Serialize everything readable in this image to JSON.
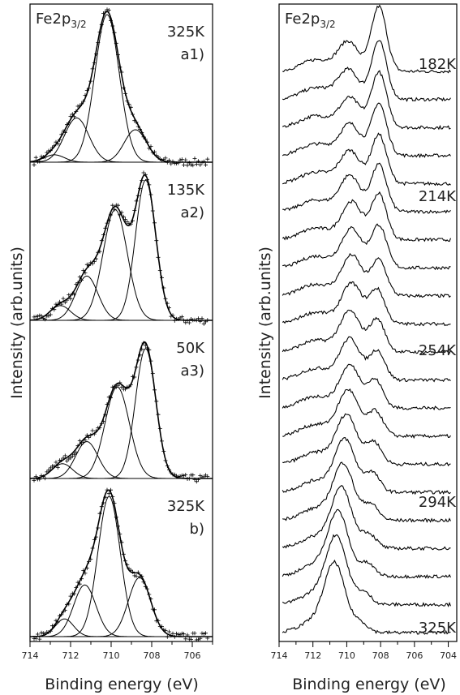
{
  "chart_data": [
    {
      "type": "line",
      "title": "",
      "xlabel": "Binding energy (eV)",
      "ylabel": "Intensity (arb.units)",
      "xlim": [
        714,
        705
      ],
      "x_reversed": true,
      "xticks": [
        "714",
        "712",
        "710",
        "708",
        "706"
      ],
      "element_label": "Fe2p",
      "element_sub": "3/2",
      "panels": [
        {
          "temp": "325K",
          "tag": "a1)",
          "components": [
            {
              "center": 712.8,
              "height": 0.05,
              "width": 0.5
            },
            {
              "center": 711.7,
              "height": 0.3,
              "width": 0.6
            },
            {
              "center": 710.2,
              "height": 1.0,
              "width": 0.6
            },
            {
              "center": 708.8,
              "height": 0.22,
              "width": 0.55
            }
          ]
        },
        {
          "temp": "135K",
          "tag": "a2)",
          "components": [
            {
              "center": 712.5,
              "height": 0.1,
              "width": 0.5
            },
            {
              "center": 711.2,
              "height": 0.3,
              "width": 0.55
            },
            {
              "center": 709.8,
              "height": 0.75,
              "width": 0.6
            },
            {
              "center": 708.3,
              "height": 0.95,
              "width": 0.5
            }
          ]
        },
        {
          "temp": "50K",
          "tag": "a3)",
          "components": [
            {
              "center": 712.4,
              "height": 0.1,
              "width": 0.5
            },
            {
              "center": 711.2,
              "height": 0.25,
              "width": 0.55
            },
            {
              "center": 709.7,
              "height": 0.62,
              "width": 0.6
            },
            {
              "center": 708.3,
              "height": 0.88,
              "width": 0.5
            }
          ]
        },
        {
          "temp": "325K",
          "tag": "b)",
          "components": [
            {
              "center": 712.3,
              "height": 0.12,
              "width": 0.45
            },
            {
              "center": 711.3,
              "height": 0.35,
              "width": 0.55
            },
            {
              "center": 710.1,
              "height": 0.95,
              "width": 0.55
            },
            {
              "center": 708.6,
              "height": 0.4,
              "width": 0.55
            }
          ]
        }
      ]
    },
    {
      "type": "line",
      "title": "",
      "xlabel": "Binding energy (eV)",
      "ylabel": "Intensity (arb.units)",
      "xlim": [
        714,
        703.5
      ],
      "x_reversed": true,
      "xticks": [
        "714",
        "712",
        "710",
        "708",
        "706",
        "704"
      ],
      "element_label": "Fe2p",
      "element_sub": "3/2",
      "temperature_labels": [
        "182K",
        "214K",
        "254K",
        "294K",
        "325K"
      ],
      "series_count": 21,
      "peak_hi_positions": [
        708.1,
        708.1,
        708.1,
        708.1,
        708.1,
        708.1,
        708.1,
        708.1,
        708.1,
        708.2,
        708.2,
        708.2,
        708.3,
        708.3,
        708.4,
        708.5,
        708.6,
        708.7,
        708.8,
        709.0,
        709.2
      ],
      "peak_hi_heights": [
        1.0,
        0.9,
        0.85,
        0.8,
        0.75,
        0.72,
        0.7,
        0.65,
        0.55,
        0.52,
        0.5,
        0.45,
        0.42,
        0.38,
        0.34,
        0.3,
        0.25,
        0.22,
        0.2,
        0.18,
        0.15
      ],
      "peak_lo_positions": [
        709.9,
        709.9,
        709.8,
        709.8,
        709.8,
        709.8,
        709.7,
        709.7,
        709.7,
        709.7,
        709.8,
        709.8,
        709.8,
        709.9,
        710.0,
        710.1,
        710.2,
        710.3,
        710.5,
        710.6,
        710.7
      ],
      "peak_lo_heights": [
        0.45,
        0.45,
        0.45,
        0.48,
        0.5,
        0.55,
        0.58,
        0.6,
        0.62,
        0.62,
        0.62,
        0.63,
        0.65,
        0.7,
        0.75,
        0.8,
        0.85,
        0.9,
        0.95,
        1.0,
        1.0
      ]
    }
  ]
}
